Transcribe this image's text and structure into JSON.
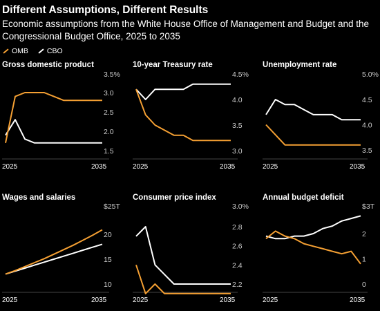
{
  "header": {
    "title": "Different Assumptions, Different Results",
    "subtitle": "Economic assumptions from the White House Office of Management and Budget and the Congressional Budget Office, 2025 to 2035"
  },
  "legend": [
    {
      "name": "OMB",
      "color": "#f5a033"
    },
    {
      "name": "CBO",
      "color": "#ffffff"
    }
  ],
  "chart_data": [
    {
      "type": "line",
      "title": "Gross domestic product",
      "unit": "%",
      "ylim": [
        1.5,
        3.5
      ],
      "yticks": [
        "1.5",
        "2.0",
        "2.5",
        "3.0",
        "3.5"
      ],
      "xlabels": [
        "2025",
        "2035"
      ],
      "x": [
        2025,
        2026,
        2027,
        2028,
        2029,
        2030,
        2031,
        2032,
        2033,
        2034,
        2035
      ],
      "series": [
        {
          "name": "OMB",
          "values": [
            1.7,
            2.9,
            3.0,
            3.0,
            3.0,
            2.9,
            2.8,
            2.8,
            2.8,
            2.8,
            2.8
          ]
        },
        {
          "name": "CBO",
          "values": [
            1.9,
            2.3,
            1.8,
            1.7,
            1.7,
            1.7,
            1.7,
            1.7,
            1.7,
            1.7,
            1.7
          ]
        }
      ]
    },
    {
      "type": "line",
      "title": "10-year Treasury rate",
      "unit": "%",
      "ylim": [
        3.0,
        4.5
      ],
      "yticks": [
        "3.0",
        "3.5",
        "4.0",
        "4.5"
      ],
      "xlabels": [
        "2025",
        "2035"
      ],
      "x": [
        2025,
        2026,
        2027,
        2028,
        2029,
        2030,
        2031,
        2032,
        2033,
        2034,
        2035
      ],
      "series": [
        {
          "name": "OMB",
          "values": [
            4.2,
            3.7,
            3.5,
            3.4,
            3.3,
            3.3,
            3.2,
            3.2,
            3.2,
            3.2,
            3.2
          ]
        },
        {
          "name": "CBO",
          "values": [
            4.2,
            4.0,
            4.2,
            4.2,
            4.2,
            4.2,
            4.3,
            4.3,
            4.3,
            4.3,
            4.3
          ]
        }
      ]
    },
    {
      "type": "line",
      "title": "Unemployment rate",
      "unit": "%",
      "ylim": [
        3.5,
        5.0
      ],
      "yticks": [
        "3.5",
        "4.0",
        "4.5",
        "5.0"
      ],
      "xlabels": [
        "2025",
        "2035"
      ],
      "x": [
        2025,
        2026,
        2027,
        2028,
        2029,
        2030,
        2031,
        2032,
        2033,
        2034,
        2035
      ],
      "series": [
        {
          "name": "OMB",
          "values": [
            4.0,
            3.8,
            3.6,
            3.6,
            3.6,
            3.6,
            3.6,
            3.6,
            3.6,
            3.6,
            3.6
          ]
        },
        {
          "name": "CBO",
          "values": [
            4.2,
            4.5,
            4.4,
            4.4,
            4.3,
            4.2,
            4.2,
            4.2,
            4.1,
            4.1,
            4.1
          ]
        }
      ]
    },
    {
      "type": "line",
      "title": "Wages and salaries",
      "unit": "$25T",
      "ylim": [
        9,
        25
      ],
      "yticks": [
        "10",
        "15",
        "20"
      ],
      "xlabels": [
        "2025",
        "2035"
      ],
      "x": [
        2025,
        2026,
        2027,
        2028,
        2029,
        2030,
        2031,
        2032,
        2033,
        2034,
        2035
      ],
      "series": [
        {
          "name": "OMB",
          "values": [
            12.0,
            12.7,
            13.5,
            14.3,
            15.1,
            16.0,
            16.9,
            17.8,
            18.8,
            19.8,
            20.9
          ]
        },
        {
          "name": "CBO",
          "values": [
            12.0,
            12.6,
            13.2,
            13.8,
            14.4,
            15.0,
            15.6,
            16.2,
            16.8,
            17.4,
            18.0
          ]
        }
      ]
    },
    {
      "type": "line",
      "title": "Consumer price index",
      "unit": "%",
      "ylim": [
        2.1,
        3.0
      ],
      "yticks": [
        "2.2",
        "2.4",
        "2.6",
        "2.8",
        "3.0"
      ],
      "xlabels": [
        "2025",
        "2035"
      ],
      "x": [
        2025,
        2026,
        2027,
        2028,
        2029,
        2030,
        2031,
        2032,
        2033,
        2034,
        2035
      ],
      "series": [
        {
          "name": "OMB",
          "values": [
            2.4,
            2.1,
            2.2,
            2.1,
            2.1,
            2.1,
            2.1,
            2.1,
            2.1,
            2.1,
            2.1
          ]
        },
        {
          "name": "CBO",
          "values": [
            2.7,
            2.8,
            2.4,
            2.3,
            2.2,
            2.2,
            2.2,
            2.2,
            2.2,
            2.2,
            2.2
          ]
        }
      ]
    },
    {
      "type": "line",
      "title": "Annual budget deficit",
      "unit": "$3T",
      "ylim": [
        -0.1,
        3
      ],
      "yticks": [
        "0",
        "1",
        "2"
      ],
      "xlabels": [
        "2025",
        "2035"
      ],
      "x": [
        2025,
        2026,
        2027,
        2028,
        2029,
        2030,
        2031,
        2032,
        2033,
        2034,
        2035
      ],
      "series": [
        {
          "name": "OMB",
          "values": [
            1.8,
            2.1,
            1.9,
            1.8,
            1.6,
            1.5,
            1.4,
            1.3,
            1.2,
            1.3,
            0.8
          ]
        },
        {
          "name": "CBO",
          "values": [
            1.9,
            1.8,
            1.8,
            1.9,
            1.9,
            2.0,
            2.2,
            2.3,
            2.5,
            2.6,
            2.7
          ]
        }
      ]
    }
  ]
}
